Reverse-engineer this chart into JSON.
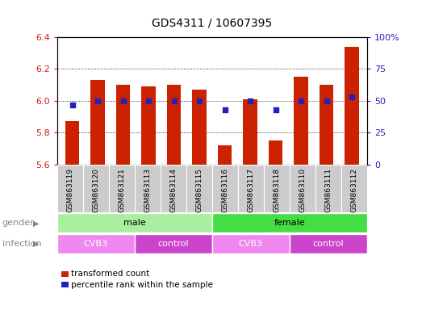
{
  "title": "GDS4311 / 10607395",
  "samples": [
    "GSM863119",
    "GSM863120",
    "GSM863121",
    "GSM863113",
    "GSM863114",
    "GSM863115",
    "GSM863116",
    "GSM863117",
    "GSM863118",
    "GSM863110",
    "GSM863111",
    "GSM863112"
  ],
  "red_values": [
    5.87,
    6.13,
    6.1,
    6.09,
    6.1,
    6.07,
    5.72,
    6.01,
    5.75,
    6.15,
    6.1,
    6.34
  ],
  "blue_values": [
    47,
    50,
    50,
    50,
    50,
    50,
    43,
    50,
    43,
    50,
    50,
    53
  ],
  "ylim_left": [
    5.6,
    6.4
  ],
  "ylim_right": [
    0,
    100
  ],
  "yticks_left": [
    5.6,
    5.8,
    6.0,
    6.2,
    6.4
  ],
  "yticks_right": [
    0,
    25,
    50,
    75,
    100
  ],
  "ytick_labels_right": [
    "0",
    "25",
    "50",
    "75",
    "100%"
  ],
  "red_color": "#cc2200",
  "blue_color": "#2222bb",
  "gender_groups": [
    {
      "label": "male",
      "start": 0,
      "end": 5,
      "color": "#aaeea0"
    },
    {
      "label": "female",
      "start": 6,
      "end": 11,
      "color": "#44dd44"
    }
  ],
  "infection_groups": [
    {
      "label": "CVB3",
      "start": 0,
      "end": 2,
      "color": "#ee88ee"
    },
    {
      "label": "control",
      "start": 3,
      "end": 5,
      "color": "#cc44cc"
    },
    {
      "label": "CVB3",
      "start": 6,
      "end": 8,
      "color": "#ee88ee"
    },
    {
      "label": "control",
      "start": 9,
      "end": 11,
      "color": "#cc44cc"
    }
  ],
  "legend_items": [
    {
      "label": "transformed count",
      "color": "#cc2200"
    },
    {
      "label": "percentile rank within the sample",
      "color": "#2222bb"
    }
  ],
  "bar_width": 0.55,
  "base_value": 5.6,
  "xlim": [
    -0.6,
    11.6
  ]
}
